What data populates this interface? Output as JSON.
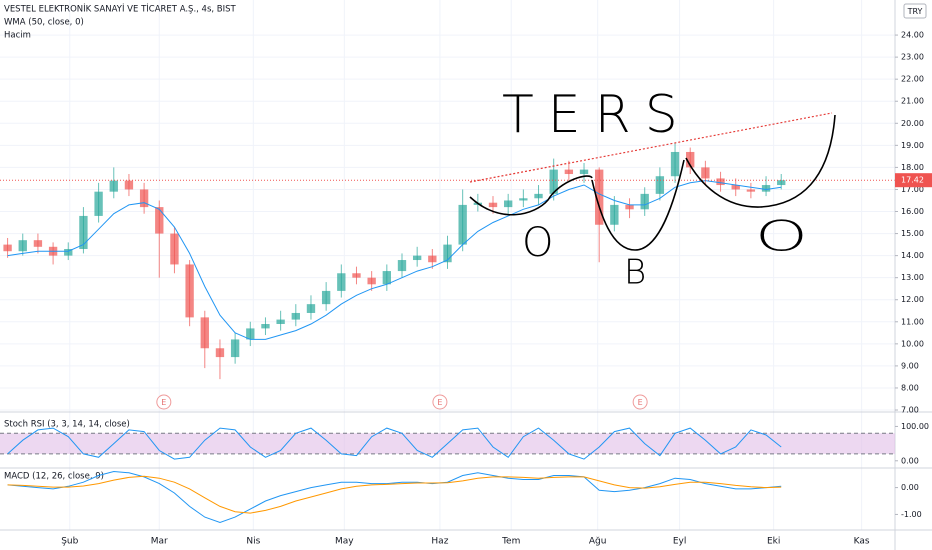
{
  "chart_data": {
    "type": "candlestick",
    "title": "VESTEL ELEKTRONİK SANAYİ VE TİCARET A.Ş., 4s, BIST",
    "volume_label": "Hacim",
    "currency": "TRY",
    "up_color": "#26a69a",
    "down_color": "#ef5350",
    "grid": true,
    "xlim": [
      0,
      59
    ],
    "xticks": [
      {
        "value": 4.6,
        "label": "Şub"
      },
      {
        "value": 10.5,
        "label": "Mar"
      },
      {
        "value": 16.7,
        "label": "Nis"
      },
      {
        "value": 22.7,
        "label": "May"
      },
      {
        "value": 29,
        "label": "Haz"
      },
      {
        "value": 33.7,
        "label": "Tem"
      },
      {
        "value": 39.4,
        "label": "Ağu"
      },
      {
        "value": 44.8,
        "label": "Eyl"
      },
      {
        "value": 51,
        "label": "Eki"
      },
      {
        "value": 56.8,
        "label": "Kas"
      }
    ],
    "ylim": [
      6.91,
      25.59
    ],
    "yticks": [
      {
        "value": 7,
        "label": "7.00"
      },
      {
        "value": 8,
        "label": "8.00"
      },
      {
        "value": 9,
        "label": "9.00"
      },
      {
        "value": 10,
        "label": "10.00"
      },
      {
        "value": 11,
        "label": "11.00"
      },
      {
        "value": 12,
        "label": "12.00"
      },
      {
        "value": 13,
        "label": "13.00"
      },
      {
        "value": 14,
        "label": "14.00"
      },
      {
        "value": 15,
        "label": "15.00"
      },
      {
        "value": 16,
        "label": "16.00"
      },
      {
        "value": 17,
        "label": "17.00"
      },
      {
        "value": 18,
        "label": "18.00"
      },
      {
        "value": 19,
        "label": "19.00"
      },
      {
        "value": 20,
        "label": "20.00"
      },
      {
        "value": 21,
        "label": "21.00"
      },
      {
        "value": 22,
        "label": "22.00"
      },
      {
        "value": 23,
        "label": "23.00"
      },
      {
        "value": 24,
        "label": "24.00"
      }
    ],
    "open": [
      14.5,
      14.2,
      14.7,
      14.4,
      14.0,
      14.3,
      15.8,
      16.9,
      17.4,
      17.0,
      16.2,
      15.0,
      13.6,
      11.2,
      9.8,
      9.4,
      10.2,
      10.7,
      10.9,
      11.1,
      11.4,
      11.8,
      12.4,
      13.2,
      13.0,
      12.7,
      13.3,
      13.8,
      14.0,
      13.7,
      14.5,
      16.3,
      16.4,
      16.2,
      16.5,
      16.6,
      16.8,
      17.9,
      17.7,
      17.9,
      15.4,
      16.3,
      16.1,
      16.8,
      17.6,
      18.7,
      18.0,
      17.5,
      17.2,
      17.0,
      16.9,
      17.2
    ],
    "high": [
      14.8,
      15.0,
      15.0,
      14.6,
      14.6,
      16.2,
      17.3,
      18.0,
      17.7,
      17.3,
      16.5,
      15.3,
      13.8,
      11.5,
      10.2,
      10.5,
      11.0,
      11.2,
      11.5,
      11.8,
      12.2,
      12.8,
      13.6,
      13.5,
      13.3,
      13.6,
      14.1,
      14.4,
      14.3,
      14.9,
      17.0,
      16.8,
      16.7,
      16.8,
      17.0,
      17.2,
      18.4,
      18.3,
      18.2,
      18.0,
      16.7,
      16.6,
      17.1,
      18.0,
      19.1,
      18.9,
      18.3,
      17.8,
      17.5,
      17.3,
      17.6,
      17.7
    ],
    "low": [
      13.9,
      14.0,
      14.1,
      13.6,
      13.8,
      14.1,
      15.5,
      16.6,
      16.7,
      15.9,
      13.0,
      13.2,
      10.8,
      8.9,
      8.4,
      9.1,
      9.9,
      10.4,
      10.6,
      10.8,
      11.1,
      11.5,
      12.1,
      12.7,
      12.4,
      12.4,
      13.0,
      13.5,
      13.4,
      13.4,
      14.2,
      16.0,
      15.9,
      15.9,
      16.2,
      16.3,
      16.5,
      17.4,
      17.3,
      13.7,
      15.1,
      15.7,
      15.8,
      16.5,
      17.3,
      17.7,
      17.2,
      16.9,
      16.7,
      16.6,
      16.7,
      17.0
    ],
    "close": [
      14.2,
      14.7,
      14.4,
      14.0,
      14.3,
      15.8,
      16.9,
      17.4,
      17.0,
      16.2,
      15.0,
      13.6,
      11.2,
      9.8,
      9.4,
      10.2,
      10.7,
      10.9,
      11.1,
      11.4,
      11.8,
      12.4,
      13.2,
      13.0,
      12.7,
      13.3,
      13.8,
      14.0,
      13.7,
      14.5,
      16.3,
      16.4,
      16.2,
      16.5,
      16.6,
      16.8,
      17.9,
      17.7,
      17.9,
      15.4,
      16.3,
      16.1,
      16.8,
      17.6,
      18.7,
      18.0,
      17.5,
      17.2,
      17.0,
      16.9,
      17.2,
      17.42
    ],
    "wma": {
      "name": "WMA (50, close, 0)",
      "color": "#2196f3",
      "values": [
        14.0,
        14.1,
        14.2,
        14.2,
        14.2,
        14.5,
        15.2,
        15.9,
        16.3,
        16.4,
        16.1,
        15.3,
        14.1,
        12.6,
        11.3,
        10.5,
        10.2,
        10.2,
        10.4,
        10.6,
        10.9,
        11.3,
        11.8,
        12.2,
        12.5,
        12.7,
        13.0,
        13.3,
        13.5,
        13.8,
        14.5,
        15.1,
        15.5,
        15.8,
        16.1,
        16.3,
        16.7,
        17.0,
        17.2,
        16.8,
        16.5,
        16.3,
        16.3,
        16.6,
        17.1,
        17.3,
        17.4,
        17.3,
        17.2,
        17.1,
        17.0,
        17.1
      ]
    },
    "events": [
      {
        "label": "E",
        "x": 10.8
      },
      {
        "label": "E",
        "x": 29
      },
      {
        "label": "E",
        "x": 42.2
      }
    ],
    "annotations": [
      "TERS",
      "O",
      "B",
      "O"
    ],
    "indicators": [
      {
        "title": "Stoch RSI (3, 3, 14, 14, close)",
        "ylim": [
          -21,
          142
        ],
        "band": [
          20,
          80
        ],
        "yticks": [
          {
            "value": 100,
            "label": "100.00"
          },
          {
            "value": 0,
            "label": "0.00"
          }
        ],
        "lines": [
          {
            "color": "#2196f3",
            "values": [
              20,
              60,
              90,
              95,
              70,
              20,
              10,
              50,
              90,
              85,
              30,
              5,
              10,
              60,
              95,
              90,
              40,
              10,
              30,
              80,
              95,
              60,
              20,
              15,
              70,
              95,
              80,
              30,
              10,
              50,
              90,
              95,
              40,
              10,
              70,
              95,
              60,
              20,
              5,
              40,
              85,
              95,
              50,
              15,
              80,
              95,
              60,
              20,
              40,
              90,
              75,
              40
            ]
          }
        ]
      },
      {
        "title": "MACD (12, 26, close, 9)",
        "ylim": [
          -1.58,
          0.73
        ],
        "yticks": [
          {
            "value": 0,
            "label": "0.00"
          },
          {
            "value": -1,
            "label": "-1.00"
          }
        ],
        "lines": [
          {
            "color": "#2196f3",
            "values": [
              0.1,
              0.05,
              0,
              -0.05,
              0.05,
              0.2,
              0.45,
              0.6,
              0.55,
              0.4,
              0.15,
              -0.2,
              -0.7,
              -1.1,
              -1.3,
              -1.1,
              -0.8,
              -0.5,
              -0.3,
              -0.15,
              0,
              0.1,
              0.2,
              0.2,
              0.15,
              0.15,
              0.2,
              0.2,
              0.15,
              0.2,
              0.45,
              0.55,
              0.45,
              0.35,
              0.3,
              0.3,
              0.45,
              0.45,
              0.4,
              -0.1,
              -0.15,
              -0.1,
              0,
              0.15,
              0.35,
              0.3,
              0.15,
              0.05,
              -0.05,
              -0.05,
              0,
              0.05
            ]
          },
          {
            "color": "#ff9800",
            "values": [
              0.1,
              0.08,
              0.05,
              0.02,
              0.02,
              0.06,
              0.15,
              0.28,
              0.38,
              0.42,
              0.35,
              0.2,
              -0.05,
              -0.38,
              -0.7,
              -0.9,
              -0.95,
              -0.85,
              -0.7,
              -0.5,
              -0.35,
              -0.2,
              -0.05,
              0.05,
              0.1,
              0.12,
              0.15,
              0.17,
              0.17,
              0.18,
              0.25,
              0.35,
              0.4,
              0.4,
              0.38,
              0.35,
              0.38,
              0.4,
              0.4,
              0.25,
              0.1,
              0,
              -0.02,
              0.03,
              0.12,
              0.2,
              0.2,
              0.15,
              0.08,
              0.03,
              0,
              0.02
            ]
          }
        ]
      }
    ]
  }
}
